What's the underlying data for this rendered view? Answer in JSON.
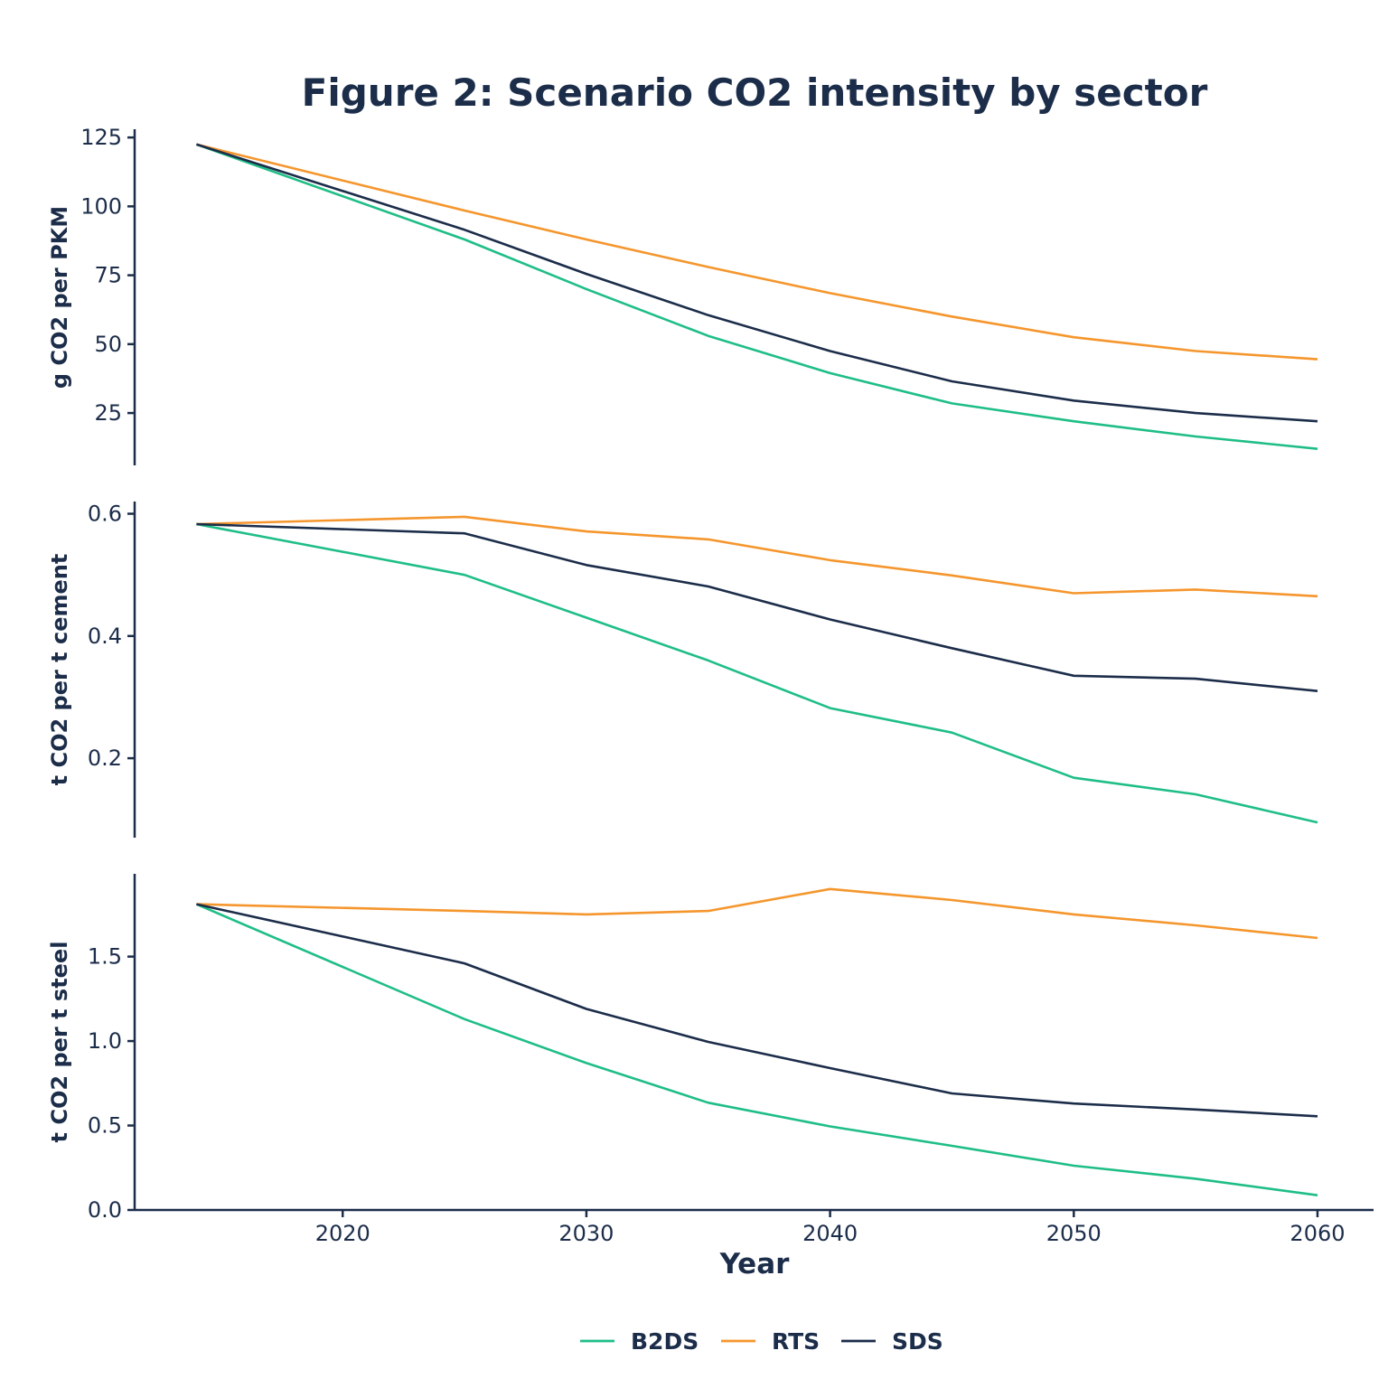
{
  "chart_data": {
    "type": "line",
    "title": "Figure 2: Scenario CO2 intensity by sector",
    "xlabel": "Year",
    "x": [
      2014,
      2025,
      2030,
      2035,
      2040,
      2045,
      2050,
      2055,
      2060
    ],
    "xticks": [
      2020,
      2030,
      2040,
      2050,
      2060
    ],
    "xlim": [
      2011.5,
      2062.3
    ],
    "legend_position": "bottom-center",
    "grid": false,
    "series_names": [
      "B2DS",
      "RTS",
      "SDS"
    ],
    "colors": {
      "B2DS": "#1fbe86",
      "RTS": "#f5962d",
      "SDS": "#1c2d4a"
    },
    "panels": [
      {
        "ylabel": "g CO2 per PKM",
        "ylim": [
          6,
          128
        ],
        "yticks": [
          "25",
          "50",
          "75",
          "100",
          "125"
        ],
        "ytick_values": [
          25,
          50,
          75,
          100,
          125
        ],
        "series": [
          {
            "name": "B2DS",
            "values": [
              122.5,
              88,
              70,
              53,
              39.5,
              28.5,
              22,
              16.5,
              12
            ]
          },
          {
            "name": "RTS",
            "values": [
              122.5,
              98.5,
              88,
              78,
              68.5,
              60,
              52.5,
              47.5,
              44.5
            ]
          },
          {
            "name": "SDS",
            "values": [
              122.5,
              91.5,
              75.5,
              60.5,
              47.5,
              36.5,
              29.5,
              25,
              22
            ]
          }
        ]
      },
      {
        "ylabel": "t CO2 per t cement",
        "ylim": [
          0.07,
          0.62
        ],
        "yticks": [
          "0.2",
          "0.4",
          "0.6"
        ],
        "ytick_values": [
          0.2,
          0.4,
          0.6
        ],
        "series": [
          {
            "name": "B2DS",
            "values": [
              0.583,
              0.5,
              0.43,
              0.36,
              0.282,
              0.242,
              0.168,
              0.141,
              0.095
            ]
          },
          {
            "name": "RTS",
            "values": [
              0.583,
              0.595,
              0.571,
              0.558,
              0.524,
              0.499,
              0.47,
              0.476,
              0.465
            ]
          },
          {
            "name": "SDS",
            "values": [
              0.583,
              0.568,
              0.516,
              0.481,
              0.427,
              0.38,
              0.335,
              0.33,
              0.31
            ]
          }
        ]
      },
      {
        "ylabel": "t CO2 per t steel",
        "ylim": [
          0,
          1.99
        ],
        "yticks": [
          "0.0",
          "0.5",
          "1.0",
          "1.5"
        ],
        "ytick_values": [
          0,
          0.5,
          1.0,
          1.5
        ],
        "series": [
          {
            "name": "B2DS",
            "values": [
              1.81,
              1.13,
              0.87,
              0.635,
              0.495,
              0.38,
              0.262,
              0.185,
              0.087
            ]
          },
          {
            "name": "RTS",
            "values": [
              1.81,
              1.77,
              1.75,
              1.77,
              1.9,
              1.835,
              1.75,
              1.685,
              1.61
            ]
          },
          {
            "name": "SDS",
            "values": [
              1.81,
              1.46,
              1.19,
              0.995,
              0.84,
              0.69,
              0.63,
              0.595,
              0.555
            ]
          }
        ]
      }
    ]
  }
}
